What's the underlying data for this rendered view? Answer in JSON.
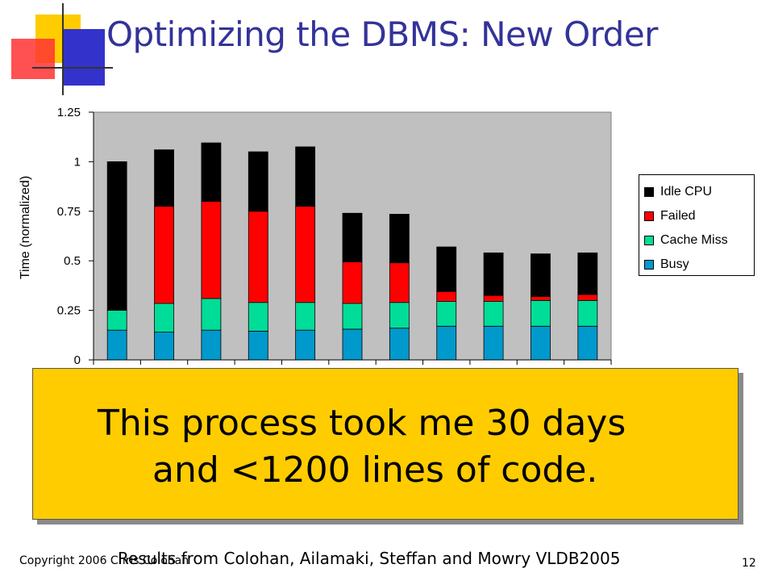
{
  "slide": {
    "title": "Optimizing the DBMS: New Order",
    "callout_line1": "This process took me 30 days",
    "callout_line2": "and <1200 lines of code.",
    "footer_copyright": "Copyright 2006 Chris Colohan",
    "footer_credit": "Results from Colohan, Ailamaki, Steffan and Mowry VLDB2005",
    "page_number": "12"
  },
  "colors": {
    "title": "#333399",
    "plot_background": "#C0C0C0",
    "callout": "#FFCC00",
    "logo_yellow": "#FFCC00",
    "logo_blue": "#3333CC",
    "logo_red": "#FF3333"
  },
  "chart_data": {
    "type": "bar",
    "stacked": true,
    "title": "",
    "xlabel": "",
    "ylabel": "Time (normalized)",
    "ylim": [
      0,
      1.25
    ],
    "yticks": [
      "0",
      "0.25",
      "0.5",
      "0.75",
      "1",
      "1.25"
    ],
    "yticks_values": [
      0,
      0.25,
      0.5,
      0.75,
      1,
      1.25
    ],
    "grid": false,
    "legend_position": "right",
    "categories_count": 11,
    "series": [
      {
        "name": "Busy",
        "color": "#0099CC",
        "values": [
          0.15,
          0.14,
          0.15,
          0.145,
          0.15,
          0.155,
          0.16,
          0.17,
          0.17,
          0.17,
          0.17
        ]
      },
      {
        "name": "Cache Miss",
        "color": "#00DD99",
        "values": [
          0.1,
          0.145,
          0.16,
          0.145,
          0.14,
          0.13,
          0.13,
          0.125,
          0.125,
          0.13,
          0.13
        ]
      },
      {
        "name": "Failed",
        "color": "#FF0000",
        "values": [
          0.0,
          0.49,
          0.49,
          0.46,
          0.485,
          0.21,
          0.2,
          0.05,
          0.03,
          0.02,
          0.03
        ]
      },
      {
        "name": "Idle CPU",
        "color": "#000000",
        "values": [
          0.75,
          0.285,
          0.295,
          0.3,
          0.3,
          0.245,
          0.245,
          0.225,
          0.215,
          0.215,
          0.21
        ]
      }
    ]
  }
}
